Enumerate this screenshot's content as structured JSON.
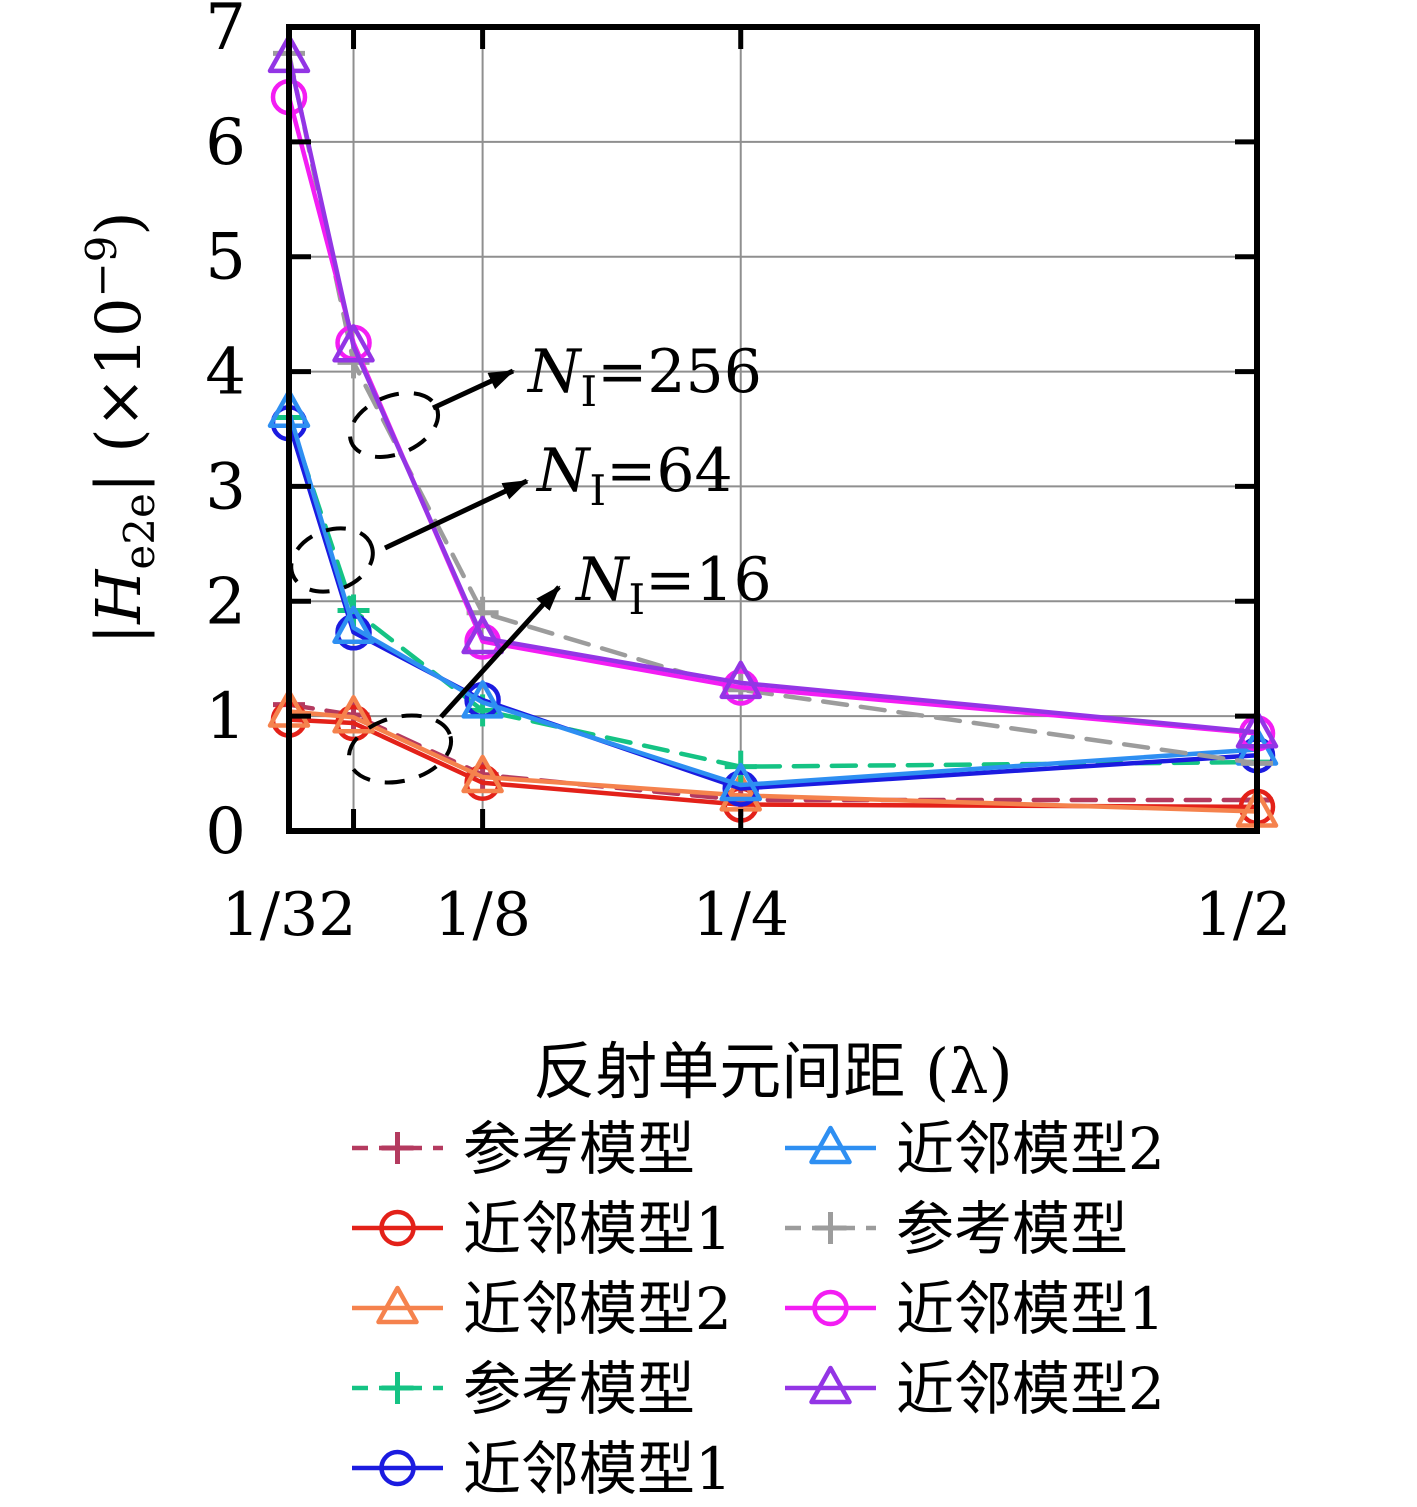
{
  "axes": {
    "x_title": "反射单元间距 (λ)",
    "y_title_bar1": "|",
    "y_title_H": "H",
    "y_title_sub": "e2e",
    "y_title_mid": "| (×10",
    "y_title_sup": "−9",
    "y_title_end": ")",
    "y_ticks": [
      "0",
      "1",
      "2",
      "3",
      "4",
      "5",
      "6",
      "7"
    ],
    "x_ticks": [
      {
        "value": 0.03125,
        "label": "1/32"
      },
      {
        "value": 0.0625,
        "label": ""
      },
      {
        "value": 0.125,
        "label": "1/8"
      },
      {
        "value": 0.25,
        "label": "1/4"
      },
      {
        "value": 0.5,
        "label": "1/2"
      }
    ]
  },
  "annotations": [
    {
      "n": "N",
      "sub": "I",
      "rest": "=256"
    },
    {
      "n": "N",
      "sub": "I",
      "rest": "=64"
    },
    {
      "n": "N",
      "sub": "I",
      "rest": "=16"
    }
  ],
  "chart_data": {
    "type": "line",
    "xlabel": "反射单元间距 (λ)",
    "ylabel": "|H_e2e| (×10^−9)",
    "ylim": [
      0,
      7
    ],
    "x": [
      0.03125,
      0.0625,
      0.125,
      0.25,
      0.5
    ],
    "x_tick_labels": [
      "1/32",
      "",
      "1/8",
      "1/4",
      "1/2"
    ],
    "groups": [
      "N_I=16",
      "N_I=64",
      "N_I=256"
    ],
    "series": [
      {
        "name": "参考模型",
        "group": "N_I=16",
        "color": "#b43a5f",
        "dash": true,
        "marker": "plus",
        "values": [
          1.1,
          1.01,
          0.49,
          0.27,
          0.27
        ]
      },
      {
        "name": "近邻模型1",
        "group": "N_I=16",
        "color": "#e32119",
        "dash": false,
        "marker": "circle",
        "values": [
          0.97,
          0.94,
          0.42,
          0.23,
          0.21
        ]
      },
      {
        "name": "近邻模型2",
        "group": "N_I=16",
        "color": "#f5824d",
        "dash": false,
        "marker": "triangle",
        "values": [
          1.04,
          0.99,
          0.47,
          0.31,
          0.17
        ]
      },
      {
        "name": "参考模型",
        "group": "N_I=64",
        "color": "#15c384",
        "dash": true,
        "marker": "plus",
        "values": [
          3.6,
          1.92,
          1.05,
          0.56,
          0.6
        ]
      },
      {
        "name": "近邻模型1",
        "group": "N_I=64",
        "color": "#1b1be0",
        "dash": false,
        "marker": "circle",
        "values": [
          3.55,
          1.73,
          1.14,
          0.37,
          0.66
        ]
      },
      {
        "name": "近邻模型2",
        "group": "N_I=64",
        "color": "#2e8ff2",
        "dash": false,
        "marker": "triangle",
        "values": [
          3.65,
          1.77,
          1.12,
          0.4,
          0.71
        ]
      },
      {
        "name": "参考模型",
        "group": "N_I=256",
        "color": "#9c9c9c",
        "dash": true,
        "marker": "plus",
        "values": [
          6.77,
          4.08,
          1.9,
          1.23,
          0.59
        ]
      },
      {
        "name": "近邻模型1",
        "group": "N_I=256",
        "color": "#f31df3",
        "dash": false,
        "marker": "circle",
        "values": [
          6.39,
          4.25,
          1.65,
          1.25,
          0.85
        ]
      },
      {
        "name": "近邻模型2",
        "group": "N_I=256",
        "color": "#9335e5",
        "dash": false,
        "marker": "triangle",
        "values": [
          6.74,
          4.22,
          1.68,
          1.29,
          0.86
        ]
      }
    ],
    "legend_left": [
      0,
      1,
      2,
      3,
      4
    ],
    "legend_right": [
      5,
      6,
      7,
      8
    ],
    "legend_position": "below"
  }
}
